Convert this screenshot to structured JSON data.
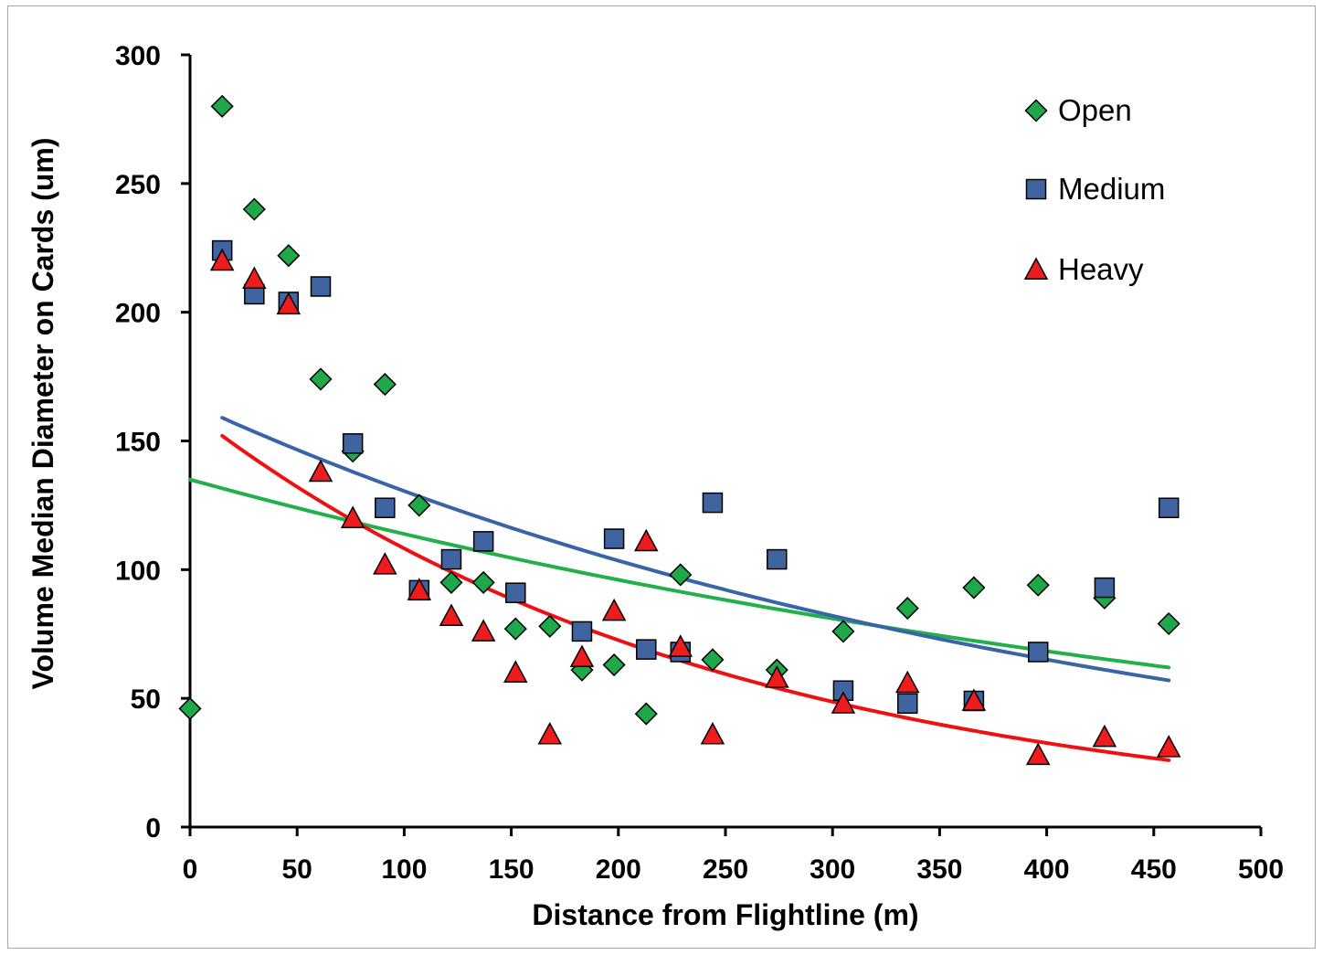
{
  "chart_data": {
    "type": "scatter",
    "xlabel": "Distance from Flightline (m)",
    "ylabel": "Volume Median Diameter on Cards (um)",
    "xlim": [
      0,
      500
    ],
    "ylim": [
      0,
      300
    ],
    "xticks": [
      0,
      50,
      100,
      150,
      200,
      250,
      300,
      350,
      400,
      450,
      500
    ],
    "yticks": [
      0,
      50,
      100,
      150,
      200,
      250,
      300
    ],
    "grid": false,
    "legend_position": "top-right",
    "series": [
      {
        "name": "Open",
        "marker": "diamond",
        "color": "#1fa84a",
        "points": [
          [
            0,
            46
          ],
          [
            15,
            280
          ],
          [
            30,
            240
          ],
          [
            46,
            222
          ],
          [
            61,
            174
          ],
          [
            76,
            146
          ],
          [
            91,
            172
          ],
          [
            107,
            125
          ],
          [
            122,
            95
          ],
          [
            137,
            95
          ],
          [
            152,
            77
          ],
          [
            168,
            78
          ],
          [
            183,
            61
          ],
          [
            198,
            63
          ],
          [
            213,
            44
          ],
          [
            229,
            98
          ],
          [
            244,
            65
          ],
          [
            274,
            61
          ],
          [
            305,
            76
          ],
          [
            335,
            85
          ],
          [
            366,
            93
          ],
          [
            396,
            94
          ],
          [
            427,
            89
          ],
          [
            457,
            79
          ]
        ],
        "trend": {
          "type": "exponential",
          "color": "#22b04a",
          "x": [
            0,
            457
          ],
          "y_start": 135,
          "y_end": 62
        }
      },
      {
        "name": "Medium",
        "marker": "square",
        "color": "#3f64a0",
        "points": [
          [
            15,
            224
          ],
          [
            30,
            207
          ],
          [
            46,
            204
          ],
          [
            61,
            210
          ],
          [
            76,
            149
          ],
          [
            91,
            124
          ],
          [
            107,
            92
          ],
          [
            122,
            104
          ],
          [
            137,
            111
          ],
          [
            152,
            91
          ],
          [
            183,
            76
          ],
          [
            198,
            112
          ],
          [
            213,
            69
          ],
          [
            229,
            68
          ],
          [
            244,
            126
          ],
          [
            274,
            104
          ],
          [
            305,
            53
          ],
          [
            335,
            48
          ],
          [
            366,
            49
          ],
          [
            396,
            68
          ],
          [
            427,
            93
          ],
          [
            457,
            124
          ]
        ],
        "trend": {
          "type": "exponential",
          "color": "#3a64a8",
          "x": [
            15,
            457
          ],
          "y_start": 159,
          "y_end": 57
        }
      },
      {
        "name": "Heavy",
        "marker": "triangle",
        "color": "#ee1c1c",
        "points": [
          [
            15,
            220
          ],
          [
            30,
            213
          ],
          [
            46,
            203
          ],
          [
            61,
            138
          ],
          [
            76,
            120
          ],
          [
            91,
            102
          ],
          [
            107,
            92
          ],
          [
            122,
            82
          ],
          [
            137,
            76
          ],
          [
            152,
            60
          ],
          [
            168,
            36
          ],
          [
            183,
            66
          ],
          [
            198,
            84
          ],
          [
            213,
            111
          ],
          [
            229,
            70
          ],
          [
            244,
            36
          ],
          [
            274,
            58
          ],
          [
            305,
            48
          ],
          [
            335,
            56
          ],
          [
            366,
            49
          ],
          [
            396,
            28
          ],
          [
            427,
            35
          ],
          [
            457,
            31
          ]
        ],
        "trend": {
          "type": "exponential",
          "color": "#ee1111",
          "x": [
            15,
            457
          ],
          "y_start": 152,
          "y_end": 26
        }
      }
    ]
  }
}
